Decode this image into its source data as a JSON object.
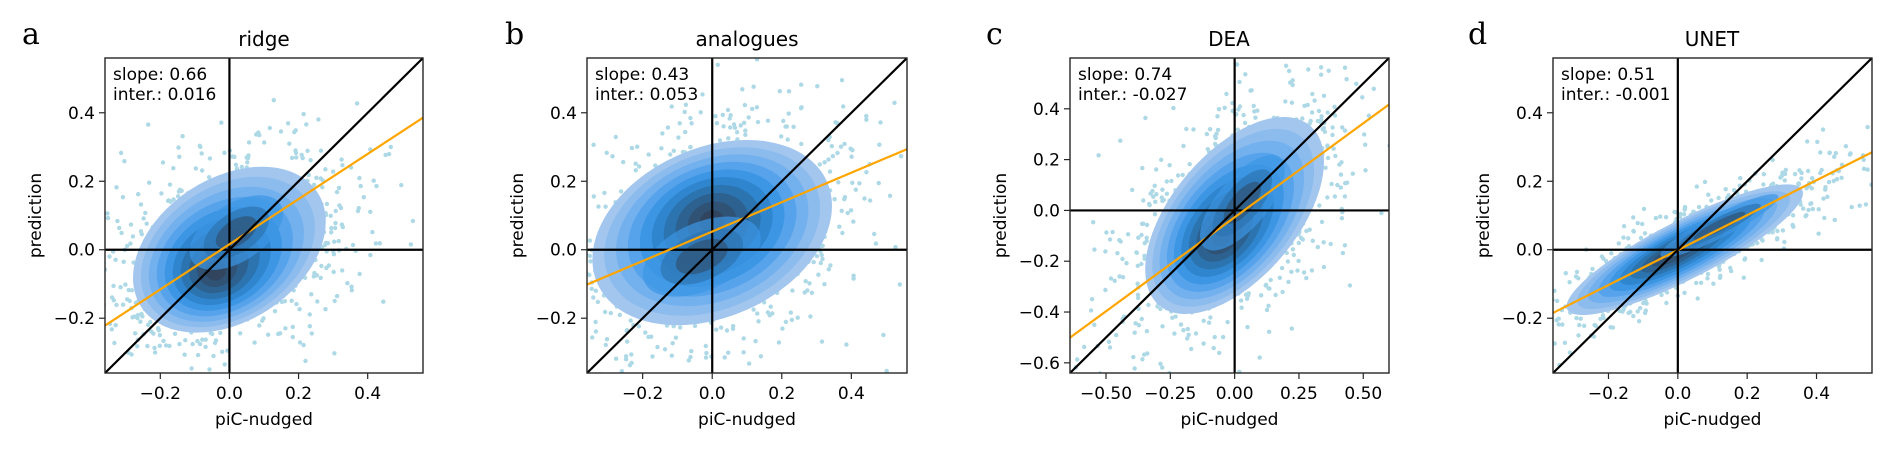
{
  "chart_data": [
    {
      "type": "scatter",
      "panel_letter": "a",
      "title": "ridge",
      "xlabel": "piC-nudged",
      "ylabel": "prediction",
      "xlim": [
        -0.36,
        0.56
      ],
      "ylim": [
        -0.36,
        0.56
      ],
      "xticks": [
        -0.2,
        0.0,
        0.2,
        0.4
      ],
      "xtick_labels": [
        "−0.2",
        "0.0",
        "0.2",
        "0.4"
      ],
      "yticks": [
        -0.2,
        0.0,
        0.2,
        0.4
      ],
      "ytick_labels": [
        "−0.2",
        "0.0",
        "0.2",
        "0.4"
      ],
      "annotation": {
        "slope_text": "slope: 0.66",
        "inter_text": "inter.: 0.016"
      },
      "fit": {
        "slope": 0.66,
        "intercept": 0.016
      },
      "density": {
        "center": [
          0.0,
          0.0
        ],
        "spread": [
          0.16,
          0.11
        ],
        "angle_deg": 33,
        "peaks": [
          [
            -0.04,
            -0.06
          ],
          [
            0.02,
            0.05
          ]
        ]
      },
      "identity_line": true,
      "zero_lines": true
    },
    {
      "type": "scatter",
      "panel_letter": "b",
      "title": "analogues",
      "xlabel": "piC-nudged",
      "ylabel": "prediction",
      "xlim": [
        -0.36,
        0.56
      ],
      "ylim": [
        -0.36,
        0.56
      ],
      "xticks": [
        -0.2,
        0.0,
        0.2,
        0.4
      ],
      "xtick_labels": [
        "−0.2",
        "0.0",
        "0.2",
        "0.4"
      ],
      "yticks": [
        -0.2,
        0.0,
        0.2,
        0.4
      ],
      "ytick_labels": [
        "−0.2",
        "0.0",
        "0.2",
        "0.4"
      ],
      "annotation": {
        "slope_text": "slope: 0.43",
        "inter_text": "inter.: 0.053"
      },
      "fit": {
        "slope": 0.43,
        "intercept": 0.053
      },
      "density": {
        "center": [
          0.0,
          0.05
        ],
        "spread": [
          0.19,
          0.13
        ],
        "angle_deg": 24,
        "peaks": [
          [
            0.0,
            0.08
          ],
          [
            -0.03,
            -0.02
          ]
        ]
      },
      "identity_line": true,
      "zero_lines": true
    },
    {
      "type": "scatter",
      "panel_letter": "c",
      "title": "DEA",
      "xlabel": "piC-nudged",
      "ylabel": "prediction",
      "xlim": [
        -0.64,
        0.6
      ],
      "ylim": [
        -0.64,
        0.6
      ],
      "xticks": [
        -0.5,
        -0.25,
        0.0,
        0.25,
        0.5
      ],
      "xtick_labels": [
        "−0.50",
        "−0.25",
        "0.00",
        "0.25",
        "0.50"
      ],
      "yticks": [
        -0.6,
        -0.4,
        -0.2,
        0.0,
        0.2,
        0.4
      ],
      "ytick_labels": [
        "−0.6",
        "−0.4",
        "−0.2",
        "0.0",
        "0.2",
        "0.4"
      ],
      "annotation": {
        "slope_text": "slope: 0.74",
        "inter_text": "inter.: -0.027"
      },
      "fit": {
        "slope": 0.74,
        "intercept": -0.027
      },
      "density": {
        "center": [
          0.0,
          -0.02
        ],
        "spread": [
          0.24,
          0.13
        ],
        "angle_deg": 50,
        "peaks": [
          [
            -0.05,
            -0.1
          ],
          [
            0.03,
            0.03
          ]
        ]
      },
      "identity_line": true,
      "zero_lines": true
    },
    {
      "type": "scatter",
      "panel_letter": "d",
      "title": "UNET",
      "xlabel": "piC-nudged",
      "ylabel": "prediction",
      "xlim": [
        -0.36,
        0.56
      ],
      "ylim": [
        -0.36,
        0.56
      ],
      "xticks": [
        -0.2,
        0.0,
        0.2,
        0.4
      ],
      "xtick_labels": [
        "−0.2",
        "0.0",
        "0.2",
        "0.4"
      ],
      "yticks": [
        -0.2,
        0.0,
        0.2,
        0.4
      ],
      "ytick_labels": [
        "−0.2",
        "0.0",
        "0.2",
        "0.4"
      ],
      "annotation": {
        "slope_text": "slope: 0.51",
        "inter_text": "inter.: -0.001"
      },
      "fit": {
        "slope": 0.51,
        "intercept": -0.001
      },
      "density": {
        "center": [
          0.02,
          0.0
        ],
        "spread": [
          0.2,
          0.045
        ],
        "angle_deg": 27,
        "peaks": [
          [
            -0.01,
            -0.01
          ],
          [
            0.12,
            0.07
          ]
        ]
      },
      "identity_line": true,
      "zero_lines": true
    }
  ],
  "colors": {
    "scatter": "#add8e6",
    "density_levels": [
      "#a3c6ee",
      "#8cbbee",
      "#72b0ee",
      "#56a3ec",
      "#3c96e4",
      "#2f86cf",
      "#2c74b0",
      "#2d6290",
      "#2f5275",
      "#31455f"
    ],
    "fit_line": "#ffa500",
    "reference_lines": "#000000"
  }
}
